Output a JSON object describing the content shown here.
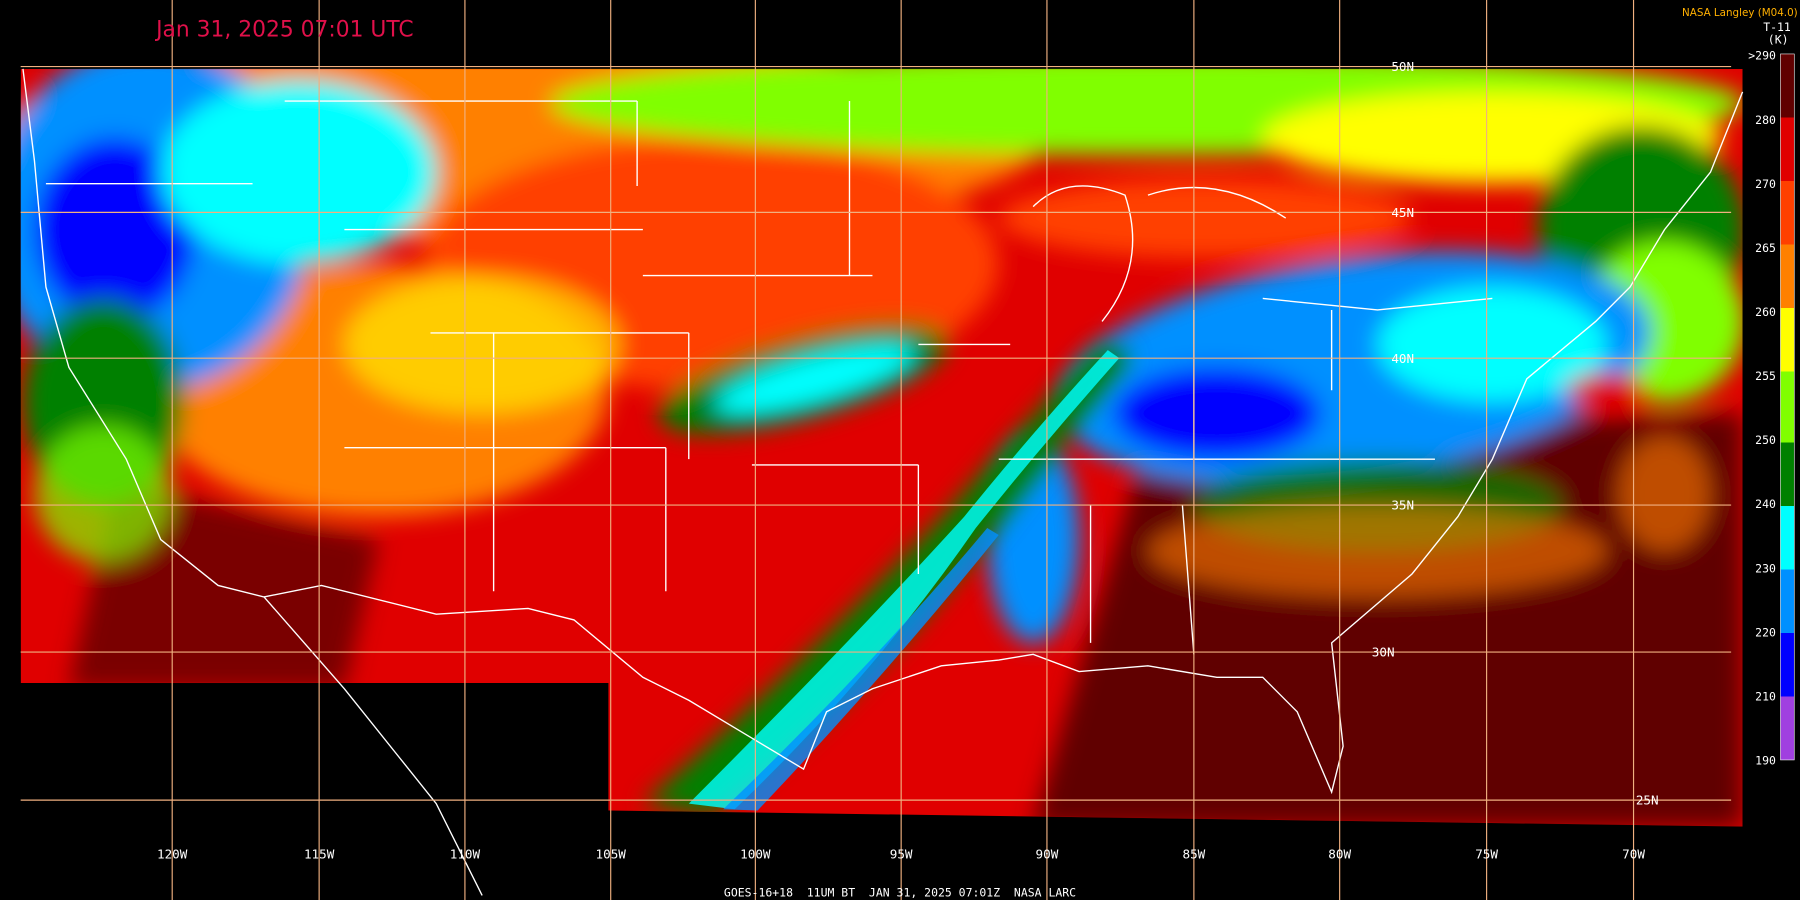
{
  "title": "Jan 31, 2025 07:01 UTC",
  "credit": "NASA Langley (M04.0)",
  "colorbar": {
    "label": "T-11",
    "unit": "(K)",
    "ticks": [
      ">290",
      "280",
      "270",
      "265",
      "260",
      "255",
      "250",
      "240",
      "230",
      "220",
      "210",
      "190"
    ]
  },
  "graticule": {
    "longitudes": [
      "120W",
      "115W",
      "110W",
      "105W",
      "100W",
      "95W",
      "90W",
      "85W",
      "80W",
      "75W",
      "70W"
    ],
    "latitudes": [
      "50N",
      "45N",
      "40N",
      "35N",
      "30N",
      "25N"
    ]
  },
  "footer": "GOES-16+18  11UM BT  JAN 31, 2025 07:01Z  NASA LARC"
}
